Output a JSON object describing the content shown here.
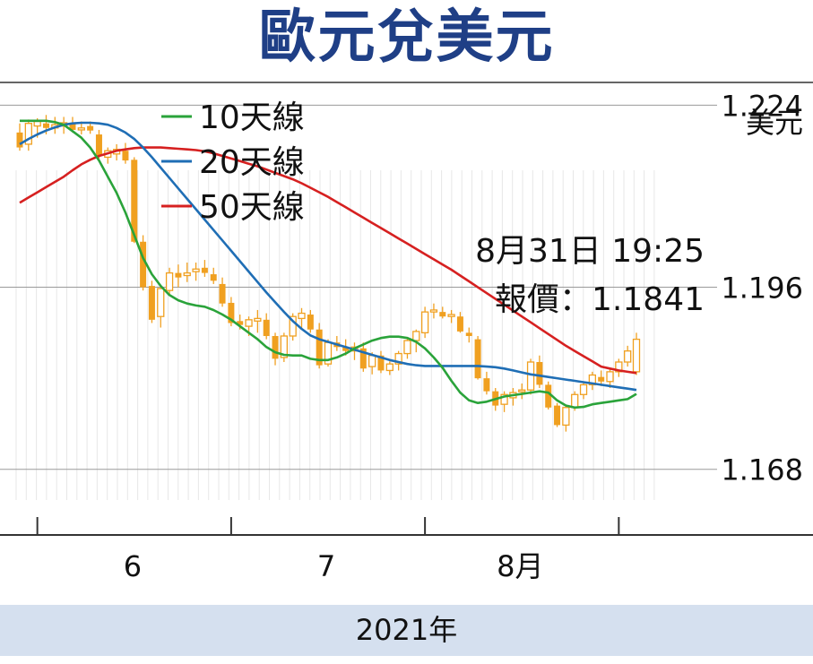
{
  "title": "歐元兌美元",
  "footer": "2021年",
  "chart_data": {
    "type": "candlestick",
    "y_unit_label": "美元",
    "ylim": [
      1.163,
      1.2275
    ],
    "y_ticks": [
      {
        "value": 1.224,
        "label": "1.224"
      },
      {
        "value": 1.196,
        "label": "1.196"
      },
      {
        "value": 1.168,
        "label": "1.168"
      }
    ],
    "x_tick_labels": [
      "6",
      "7",
      "8月"
    ],
    "x_label_positions": [
      24,
      46,
      68
    ],
    "x_tick_positions": [
      2,
      24,
      46,
      68
    ],
    "annotation": [
      "8月31日 19:25",
      "報價：1.1841"
    ],
    "legend": [
      {
        "name": "10天線",
        "color": "#2aa33a"
      },
      {
        "name": "20天線",
        "color": "#1f6eb5"
      },
      {
        "name": "50天線",
        "color": "#d62020"
      }
    ],
    "candle_color": "#f0a020",
    "candles": [
      [
        1.2198,
        1.2212,
        1.217,
        1.2175
      ],
      [
        1.218,
        1.2218,
        1.217,
        1.2212
      ],
      [
        1.2208,
        1.222,
        1.219,
        1.2215
      ],
      [
        1.2212,
        1.2225,
        1.2195,
        1.2205
      ],
      [
        1.2205,
        1.2222,
        1.2196,
        1.221
      ],
      [
        1.2208,
        1.2222,
        1.2196,
        1.2213
      ],
      [
        1.2212,
        1.2222,
        1.2198,
        1.2202
      ],
      [
        1.2202,
        1.2215,
        1.2195,
        1.2205
      ],
      [
        1.2208,
        1.2215,
        1.2196,
        1.2201
      ],
      [
        1.2195,
        1.2202,
        1.2158,
        1.2162
      ],
      [
        1.216,
        1.2175,
        1.215,
        1.217
      ],
      [
        1.2165,
        1.218,
        1.2155,
        1.2172
      ],
      [
        1.217,
        1.2182,
        1.215,
        1.2155
      ],
      [
        1.2156,
        1.216,
        1.2028,
        1.203
      ],
      [
        1.203,
        1.204,
        1.1955,
        1.196
      ],
      [
        1.1962,
        1.197,
        1.1905,
        1.191
      ],
      [
        1.1915,
        1.196,
        1.1898,
        1.1958
      ],
      [
        1.1955,
        1.199,
        1.1948,
        1.1982
      ],
      [
        1.1982,
        1.1995,
        1.196,
        1.1975
      ],
      [
        1.1978,
        1.1998,
        1.1968,
        1.1982
      ],
      [
        1.1984,
        1.1998,
        1.197,
        1.1988
      ],
      [
        1.199,
        1.2002,
        1.1976,
        1.1982
      ],
      [
        1.198,
        1.199,
        1.1965,
        1.197
      ],
      [
        1.1965,
        1.1975,
        1.193,
        1.1935
      ],
      [
        1.1936,
        1.1945,
        1.19,
        1.1905
      ],
      [
        1.1908,
        1.1918,
        1.1895,
        1.1902
      ],
      [
        1.19,
        1.1915,
        1.1885,
        1.191
      ],
      [
        1.1908,
        1.1925,
        1.189,
        1.1912
      ],
      [
        1.191,
        1.192,
        1.188,
        1.1885
      ],
      [
        1.1885,
        1.189,
        1.184,
        1.185
      ],
      [
        1.1852,
        1.189,
        1.1845,
        1.1885
      ],
      [
        1.1885,
        1.192,
        1.1878,
        1.1915
      ],
      [
        1.1912,
        1.1928,
        1.1895,
        1.192
      ],
      [
        1.1918,
        1.1925,
        1.189,
        1.1895
      ],
      [
        1.1895,
        1.1905,
        1.1835,
        1.184
      ],
      [
        1.1842,
        1.188,
        1.1838,
        1.1875
      ],
      [
        1.1875,
        1.1885,
        1.1862,
        1.1868
      ],
      [
        1.1868,
        1.188,
        1.1855,
        1.1862
      ],
      [
        1.1862,
        1.1875,
        1.1848,
        1.1868
      ],
      [
        1.1866,
        1.1875,
        1.183,
        1.1835
      ],
      [
        1.1838,
        1.186,
        1.1826,
        1.1855
      ],
      [
        1.1855,
        1.1862,
        1.1828,
        1.1832
      ],
      [
        1.1832,
        1.1846,
        1.1825,
        1.1842
      ],
      [
        1.1842,
        1.1862,
        1.1832,
        1.1858
      ],
      [
        1.1858,
        1.1882,
        1.185,
        1.1878
      ],
      [
        1.1878,
        1.1895,
        1.186,
        1.1892
      ],
      [
        1.189,
        1.193,
        1.1882,
        1.1922
      ],
      [
        1.1922,
        1.1935,
        1.1912,
        1.1925
      ],
      [
        1.1922,
        1.193,
        1.1912,
        1.1915
      ],
      [
        1.1915,
        1.1925,
        1.1905,
        1.1918
      ],
      [
        1.1915,
        1.1922,
        1.189,
        1.1892
      ],
      [
        1.189,
        1.1898,
        1.1875,
        1.1885
      ],
      [
        1.188,
        1.1885,
        1.1818,
        1.182
      ],
      [
        1.182,
        1.183,
        1.1795,
        1.18
      ],
      [
        1.18,
        1.1805,
        1.177,
        1.1778
      ],
      [
        1.178,
        1.18,
        1.1768,
        1.1795
      ],
      [
        1.179,
        1.1805,
        1.1778,
        1.1798
      ],
      [
        1.18,
        1.1812,
        1.1788,
        1.1802
      ],
      [
        1.1802,
        1.185,
        1.1795,
        1.1845
      ],
      [
        1.1845,
        1.1855,
        1.1805,
        1.181
      ],
      [
        1.181,
        1.1815,
        1.1772,
        1.1775
      ],
      [
        1.1778,
        1.1782,
        1.1745,
        1.1748
      ],
      [
        1.1748,
        1.1778,
        1.1738,
        1.1775
      ],
      [
        1.1775,
        1.18,
        1.177,
        1.1795
      ],
      [
        1.1795,
        1.1815,
        1.1788,
        1.181
      ],
      [
        1.181,
        1.183,
        1.1802,
        1.1825
      ],
      [
        1.1822,
        1.1832,
        1.1808,
        1.1815
      ],
      [
        1.1815,
        1.1835,
        1.1805,
        1.183
      ],
      [
        1.183,
        1.185,
        1.1822,
        1.1845
      ],
      [
        1.1845,
        1.187,
        1.1838,
        1.1862
      ],
      [
        1.183,
        1.189,
        1.1825,
        1.188
      ]
    ],
    "series": [
      {
        "name": "10天線",
        "color": "#2aa33a",
        "values": [
          1.2216,
          1.2216,
          1.2216,
          1.2216,
          1.2214,
          1.221,
          1.22,
          1.219,
          1.2175,
          1.2155,
          1.213,
          1.2105,
          1.2075,
          1.204,
          1.2005,
          1.198,
          1.1962,
          1.1948,
          1.194,
          1.1935,
          1.1932,
          1.193,
          1.1925,
          1.1918,
          1.191,
          1.19,
          1.189,
          1.188,
          1.1868,
          1.186,
          1.1856,
          1.1855,
          1.1855,
          1.185,
          1.1848,
          1.1848,
          1.1852,
          1.1858,
          1.1866,
          1.1872,
          1.1878,
          1.1882,
          1.1884,
          1.1884,
          1.1882,
          1.1876,
          1.1866,
          1.1852,
          1.1836,
          1.1816,
          1.1798,
          1.1786,
          1.1782,
          1.1784,
          1.1788,
          1.1792,
          1.1794,
          1.1796,
          1.1798,
          1.18,
          1.1798,
          1.1786,
          1.1778,
          1.1775,
          1.1776,
          1.178,
          1.1782,
          1.1784,
          1.1786,
          1.1788,
          1.1796
        ]
      },
      {
        "name": "20天線",
        "color": "#1f6eb5",
        "values": [
          1.218,
          1.2188,
          1.2195,
          1.2201,
          1.2206,
          1.221,
          1.2212,
          1.2213,
          1.2213,
          1.2212,
          1.221,
          1.2205,
          1.2198,
          1.2188,
          1.2175,
          1.216,
          1.2144,
          1.2128,
          1.2112,
          1.2096,
          1.208,
          1.2064,
          1.2048,
          1.2032,
          1.2016,
          1.2,
          1.1984,
          1.1968,
          1.1952,
          1.1937,
          1.1922,
          1.1908,
          1.1896,
          1.1886,
          1.188,
          1.1876,
          1.1872,
          1.1868,
          1.1864,
          1.186,
          1.1856,
          1.1852,
          1.1848,
          1.1845,
          1.1842,
          1.184,
          1.1839,
          1.1839,
          1.1839,
          1.1839,
          1.1839,
          1.1839,
          1.1839,
          1.1838,
          1.1837,
          1.1835,
          1.1832,
          1.1829,
          1.1826,
          1.1824,
          1.1822,
          1.182,
          1.1818,
          1.1816,
          1.1814,
          1.1812,
          1.181,
          1.1808,
          1.1806,
          1.1804,
          1.1802
        ]
      },
      {
        "name": "50天線",
        "color": "#d62020",
        "values": [
          1.209,
          1.2098,
          1.2106,
          1.2114,
          1.2122,
          1.213,
          1.214,
          1.2149,
          1.2156,
          1.2162,
          1.2166,
          1.217,
          1.2172,
          1.2174,
          1.2175,
          1.2175,
          1.2175,
          1.2174,
          1.2173,
          1.2172,
          1.2171,
          1.2169,
          1.2166,
          1.2162,
          1.2158,
          1.2154,
          1.215,
          1.2146,
          1.2141,
          1.2136,
          1.2131,
          1.2126,
          1.212,
          1.2113,
          1.2106,
          1.2099,
          1.2091,
          1.2083,
          1.2075,
          1.2067,
          1.2059,
          1.2051,
          1.2043,
          1.2035,
          1.2027,
          1.2019,
          1.2011,
          1.2003,
          1.1995,
          1.1987,
          1.1978,
          1.1969,
          1.196,
          1.1951,
          1.1942,
          1.1933,
          1.1924,
          1.1915,
          1.1906,
          1.1897,
          1.1888,
          1.1879,
          1.187,
          1.1862,
          1.1854,
          1.1846,
          1.1838,
          1.1835,
          1.1832,
          1.183,
          1.1828
        ]
      }
    ]
  }
}
